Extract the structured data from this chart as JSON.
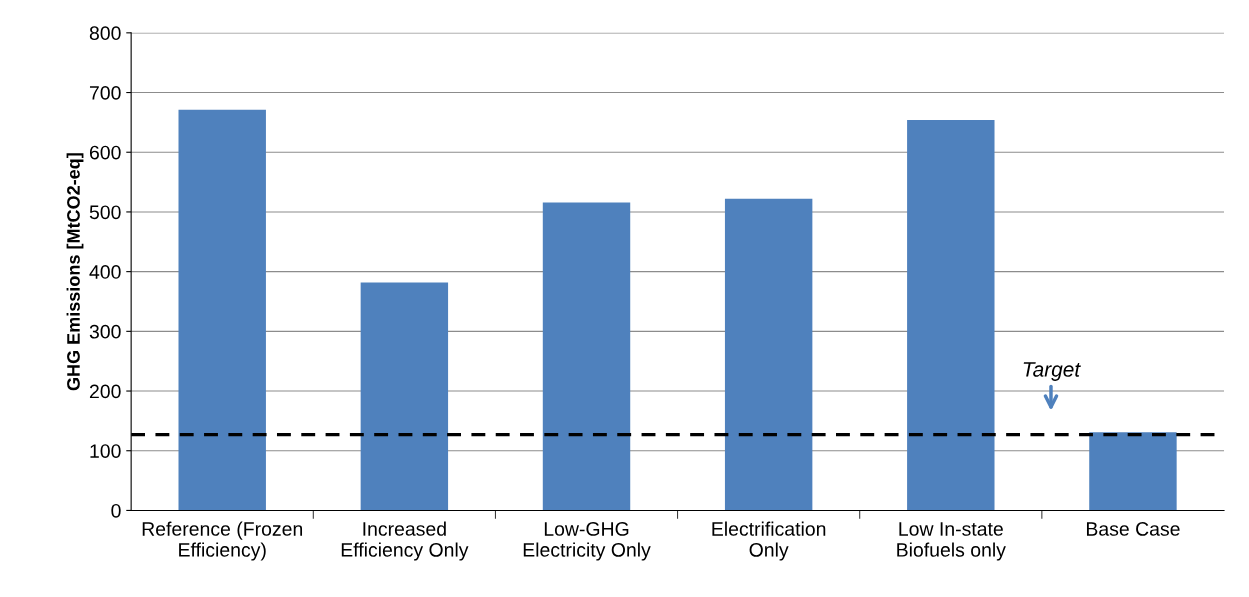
{
  "chart_data": {
    "type": "bar",
    "ylabel": "GHG Emissions [MtCO2-eq]",
    "categories": [
      "Reference (Frozen\nEfficiency)",
      "Increased\nEfficiency Only",
      "Low-GHG\nElectricity Only",
      "Electrification\nOnly",
      "Low In-state\nBiofuels only",
      "Base Case"
    ],
    "values": [
      671,
      382,
      516,
      522,
      654,
      131
    ],
    "color": "#4f81bd",
    "ylim": [
      0,
      800
    ],
    "yticks": [
      0,
      100,
      200,
      300,
      400,
      500,
      600,
      700,
      800
    ],
    "grid": "y",
    "legend": false,
    "ref_lines": [
      {
        "axis": "y",
        "value": 127,
        "label": "Target",
        "color": "#000000",
        "line_style": "dashed"
      }
    ]
  }
}
